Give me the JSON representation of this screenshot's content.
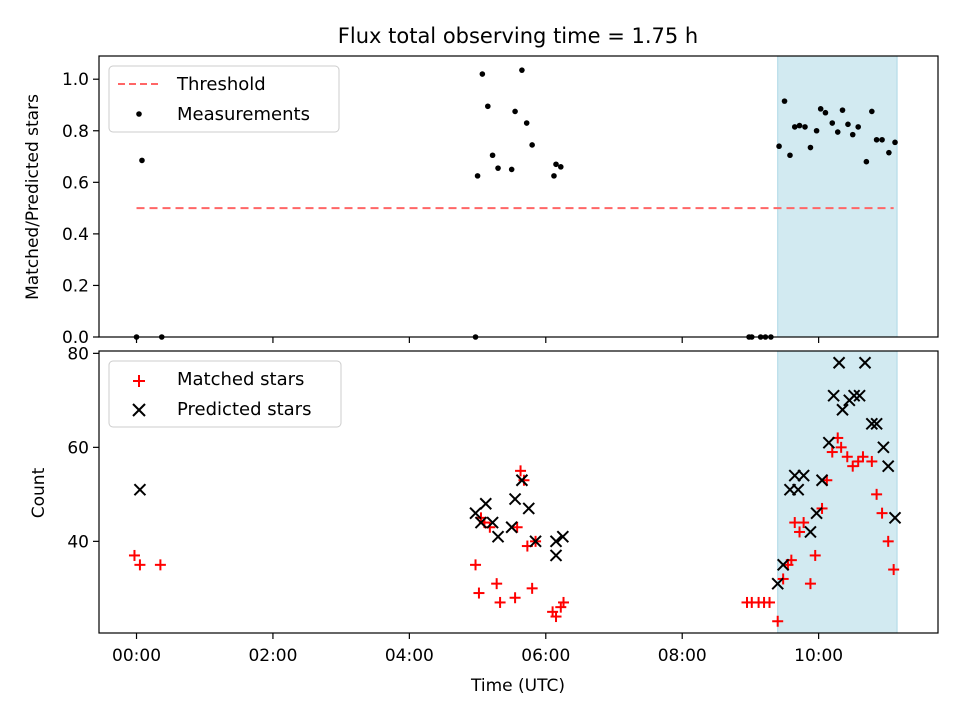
{
  "chart_data": [
    {
      "type": "scatter",
      "title": "Flux total observing time = 1.75 h",
      "xlabel": "",
      "ylabel": "Matched/Predicted stars",
      "xlim": [
        -0.55,
        11.75
      ],
      "ylim": [
        0,
        1.09
      ],
      "yticks": [
        0.0,
        0.2,
        0.4,
        0.6,
        0.8,
        1.0
      ],
      "ytick_labels": [
        "0.0",
        "0.2",
        "0.4",
        "0.6",
        "0.8",
        "1.0"
      ],
      "grid": false,
      "legend": "upper-left",
      "shaded_band": {
        "x_start": 9.4,
        "x_end": 11.15,
        "color": "#add8e6"
      },
      "series": [
        {
          "name": "Threshold",
          "style": "dashed-line",
          "color": "#ff6666",
          "x": [
            0.0,
            11.1
          ],
          "y": [
            0.5,
            0.5
          ]
        },
        {
          "name": "Measurements",
          "style": "dot",
          "color": "#000000",
          "points": [
            [
              0.0,
              0.0
            ],
            [
              0.08,
              0.685
            ],
            [
              0.37,
              0.0
            ],
            [
              4.97,
              0.0
            ],
            [
              5.0,
              0.625
            ],
            [
              5.07,
              1.02
            ],
            [
              5.15,
              0.895
            ],
            [
              5.22,
              0.705
            ],
            [
              5.3,
              0.655
            ],
            [
              5.5,
              0.65
            ],
            [
              5.55,
              0.875
            ],
            [
              5.65,
              1.035
            ],
            [
              5.72,
              0.83
            ],
            [
              5.8,
              0.745
            ],
            [
              6.12,
              0.625
            ],
            [
              6.15,
              0.67
            ],
            [
              6.22,
              0.66
            ],
            [
              8.98,
              0.0
            ],
            [
              9.02,
              0.0
            ],
            [
              9.15,
              0.0
            ],
            [
              9.22,
              0.0
            ],
            [
              9.3,
              0.0
            ],
            [
              9.42,
              0.74
            ],
            [
              9.5,
              0.915
            ],
            [
              9.58,
              0.705
            ],
            [
              9.65,
              0.815
            ],
            [
              9.72,
              0.82
            ],
            [
              9.8,
              0.815
            ],
            [
              9.88,
              0.735
            ],
            [
              9.97,
              0.8
            ],
            [
              10.03,
              0.885
            ],
            [
              10.1,
              0.87
            ],
            [
              10.2,
              0.83
            ],
            [
              10.28,
              0.795
            ],
            [
              10.35,
              0.88
            ],
            [
              10.43,
              0.825
            ],
            [
              10.5,
              0.785
            ],
            [
              10.58,
              0.815
            ],
            [
              10.7,
              0.68
            ],
            [
              10.78,
              0.875
            ],
            [
              10.85,
              0.765
            ],
            [
              10.93,
              0.765
            ],
            [
              11.03,
              0.715
            ],
            [
              11.12,
              0.755
            ]
          ]
        }
      ]
    },
    {
      "type": "scatter",
      "title": "",
      "xlabel": "Time (UTC)",
      "ylabel": "Count",
      "xlim": [
        -0.55,
        11.75
      ],
      "ylim": [
        20.5,
        80.5
      ],
      "xticks": [
        0,
        2,
        4,
        6,
        8,
        10
      ],
      "xtick_labels": [
        "00:00",
        "02:00",
        "04:00",
        "06:00",
        "08:00",
        "10:00"
      ],
      "yticks": [
        40,
        60,
        80
      ],
      "ytick_labels": [
        "40",
        "60",
        "80"
      ],
      "grid": false,
      "legend": "upper-left",
      "shaded_band": {
        "x_start": 9.4,
        "x_end": 11.15,
        "color": "#add8e6"
      },
      "series": [
        {
          "name": "Matched stars",
          "marker": "plus",
          "color": "#ff0000",
          "points": [
            [
              -0.03,
              37
            ],
            [
              0.05,
              35
            ],
            [
              0.35,
              35
            ],
            [
              4.97,
              35
            ],
            [
              5.02,
              29
            ],
            [
              5.05,
              45
            ],
            [
              5.1,
              44
            ],
            [
              5.18,
              43
            ],
            [
              5.28,
              31
            ],
            [
              5.33,
              27
            ],
            [
              5.55,
              28
            ],
            [
              5.58,
              43
            ],
            [
              5.63,
              55
            ],
            [
              5.68,
              53
            ],
            [
              5.73,
              39
            ],
            [
              5.8,
              30
            ],
            [
              5.85,
              40
            ],
            [
              6.1,
              25
            ],
            [
              6.15,
              24
            ],
            [
              6.22,
              26
            ],
            [
              6.26,
              27
            ],
            [
              8.95,
              27
            ],
            [
              9.02,
              27
            ],
            [
              9.12,
              27
            ],
            [
              9.2,
              27
            ],
            [
              9.28,
              27
            ],
            [
              9.4,
              23
            ],
            [
              9.48,
              32
            ],
            [
              9.55,
              35
            ],
            [
              9.6,
              36
            ],
            [
              9.65,
              44
            ],
            [
              9.72,
              42
            ],
            [
              9.78,
              44
            ],
            [
              9.88,
              31
            ],
            [
              9.95,
              37
            ],
            [
              10.05,
              47
            ],
            [
              10.12,
              53
            ],
            [
              10.2,
              59
            ],
            [
              10.28,
              62
            ],
            [
              10.33,
              60
            ],
            [
              10.42,
              58
            ],
            [
              10.5,
              56
            ],
            [
              10.58,
              57
            ],
            [
              10.65,
              58
            ],
            [
              10.78,
              57
            ],
            [
              10.85,
              50
            ],
            [
              10.93,
              46
            ],
            [
              11.02,
              40
            ],
            [
              11.1,
              34
            ]
          ]
        },
        {
          "name": "Predicted stars",
          "marker": "x",
          "color": "#000000",
          "points": [
            [
              0.05,
              51
            ],
            [
              4.97,
              46
            ],
            [
              5.05,
              44
            ],
            [
              5.12,
              48
            ],
            [
              5.22,
              44
            ],
            [
              5.3,
              41
            ],
            [
              5.5,
              43
            ],
            [
              5.55,
              49
            ],
            [
              5.65,
              53
            ],
            [
              5.75,
              47
            ],
            [
              5.85,
              40
            ],
            [
              6.15,
              40
            ],
            [
              6.15,
              37
            ],
            [
              6.25,
              41
            ],
            [
              9.4,
              31
            ],
            [
              9.48,
              35
            ],
            [
              9.58,
              51
            ],
            [
              9.65,
              54
            ],
            [
              9.7,
              51
            ],
            [
              9.78,
              54
            ],
            [
              9.88,
              42
            ],
            [
              9.97,
              46
            ],
            [
              10.05,
              53
            ],
            [
              10.15,
              61
            ],
            [
              10.22,
              71
            ],
            [
              10.3,
              78
            ],
            [
              10.35,
              68
            ],
            [
              10.45,
              70
            ],
            [
              10.52,
              71
            ],
            [
              10.6,
              71
            ],
            [
              10.68,
              78
            ],
            [
              10.78,
              65
            ],
            [
              10.85,
              65
            ],
            [
              10.95,
              60
            ],
            [
              11.02,
              56
            ],
            [
              11.12,
              45
            ]
          ]
        }
      ]
    }
  ]
}
